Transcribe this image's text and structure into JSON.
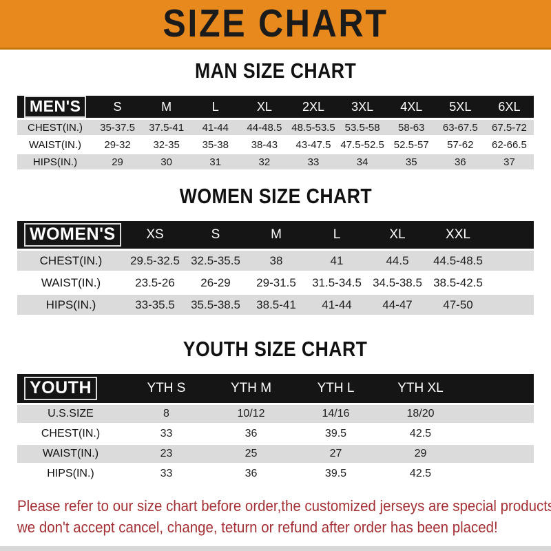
{
  "banner": {
    "title": "SIZE CHART"
  },
  "sections": [
    {
      "heading": "MAN SIZE CHART",
      "header_label": "MEN'S",
      "columns": [
        "S",
        "M",
        "L",
        "XL",
        "2XL",
        "3XL",
        "4XL",
        "5XL",
        "6XL"
      ],
      "rows": [
        {
          "label": "CHEST(IN.)",
          "values": [
            "35-37.5",
            "37.5-41",
            "41-44",
            "44-48.5",
            "48.5-53.5",
            "53.5-58",
            "58-63",
            "63-67.5",
            "67.5-72"
          ]
        },
        {
          "label": "WAIST(IN.)",
          "values": [
            "29-32",
            "32-35",
            "35-38",
            "38-43",
            "43-47.5",
            "47.5-52.5",
            "52.5-57",
            "57-62",
            "62-66.5"
          ]
        },
        {
          "label": "HIPS(IN.)",
          "values": [
            "29",
            "30",
            "31",
            "32",
            "33",
            "34",
            "35",
            "36",
            "37"
          ]
        }
      ]
    },
    {
      "heading": "WOMEN SIZE CHART",
      "header_label": "WOMEN'S",
      "columns": [
        "XS",
        "S",
        "M",
        "L",
        "XL",
        "XXL"
      ],
      "rows": [
        {
          "label": "CHEST(IN.)",
          "values": [
            "29.5-32.5",
            "32.5-35.5",
            "38",
            "41",
            "44.5",
            "44.5-48.5"
          ]
        },
        {
          "label": "WAIST(IN.)",
          "values": [
            "23.5-26",
            "26-29",
            "29-31.5",
            "31.5-34.5",
            "34.5-38.5",
            "38.5-42.5"
          ]
        },
        {
          "label": "HIPS(IN.)",
          "values": [
            "33-35.5",
            "35.5-38.5",
            "38.5-41",
            "41-44",
            "44-47",
            "47-50"
          ]
        }
      ]
    },
    {
      "heading": "YOUTH SIZE CHART",
      "header_label": "YOUTH",
      "columns": [
        "YTH S",
        "YTH M",
        "YTH L",
        "YTH XL"
      ],
      "rows": [
        {
          "label": "U.S.SIZE",
          "values": [
            "8",
            "10/12",
            "14/16",
            "18/20"
          ]
        },
        {
          "label": "CHEST(IN.)",
          "values": [
            "33",
            "36",
            "39.5",
            "42.5"
          ]
        },
        {
          "label": "WAIST(IN.)",
          "values": [
            "23",
            "25",
            "27",
            "29"
          ]
        },
        {
          "label": "HIPS(IN.)",
          "values": [
            "33",
            "36",
            "39.5",
            "42.5"
          ]
        }
      ]
    }
  ],
  "footer": {
    "line1": "Please refer to our size chart before order,the customized jerseys are special products,",
    "line2": "we don't accept cancel, change, teturn or refund after order has been placed!"
  },
  "colors": {
    "banner_bg": "#E8891E",
    "banner_edge": "#C9770F",
    "bar_bg": "#151515",
    "row_alt_bg": "#DBDBDB",
    "footer_text": "#A42F34"
  }
}
